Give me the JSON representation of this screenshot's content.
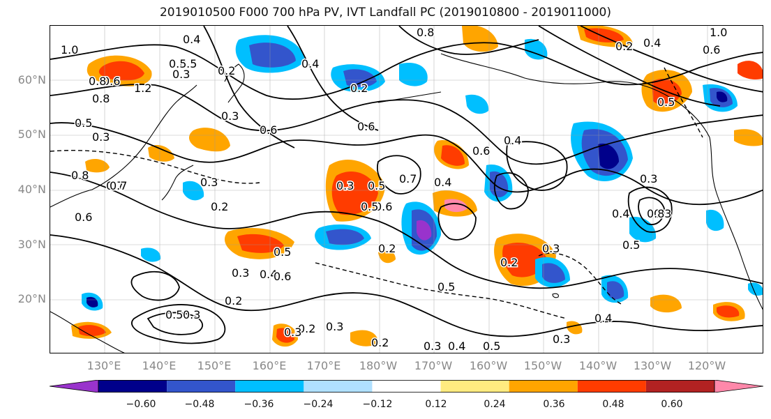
{
  "title": "2019010500 F000 700 hPa PV, IVT Landfall PC (2019010800 - 2019011000)",
  "lat_labels": [
    "60°N",
    "50°N",
    "40°N",
    "30°N",
    "20°N"
  ],
  "lon_labels": [
    "130°E",
    "140°E",
    "150°E",
    "160°E",
    "170°E",
    "180°W",
    "170°W",
    "160°W",
    "150°W",
    "140°W",
    "130°W",
    "120°W"
  ],
  "colorbar": {
    "ticks": [
      "−0.60",
      "−0.48",
      "−0.36",
      "−0.24",
      "−0.12",
      "0.12",
      "0.24",
      "0.36",
      "0.48",
      "0.60"
    ],
    "colors": [
      "#9933cc",
      "#00008b",
      "#3355cc",
      "#00bfff",
      "#b0e0ff",
      "#ffffff",
      "#ffeb80",
      "#ffa500",
      "#ff3c00",
      "#b22222",
      "#ff88aa"
    ]
  },
  "contour_labels": [
    "0.4",
    "0.5",
    "0.6",
    "0.8",
    "1.0",
    "0.8",
    "1.2",
    "0.7",
    "0.3",
    "0.2",
    "0.6",
    "0.5",
    "0.3",
    "0.8",
    "0.6",
    "0.7",
    "0.3",
    "0.5",
    "0.7",
    "0.6",
    "0.2",
    "0.5",
    "0.6",
    "0.4",
    "0.3",
    "0.5",
    "0.4",
    "0.2",
    "0.3",
    "0.2",
    "0.5",
    "0.4",
    "0.3",
    "0.6",
    "0.5",
    "0.2",
    "0.3",
    "0.5",
    "0.3",
    "0.2",
    "0.3",
    "0.5",
    "0.2",
    "0.4",
    "0.3",
    "0.3",
    "0.8",
    "1.0",
    "0.6",
    "0.4",
    "0.3",
    "0.5",
    "0.4",
    "0.8",
    "0.3",
    "0.5",
    "0.4",
    "0.2",
    "0.3",
    "0.2",
    "0.4",
    "0.6",
    "0.5"
  ]
}
